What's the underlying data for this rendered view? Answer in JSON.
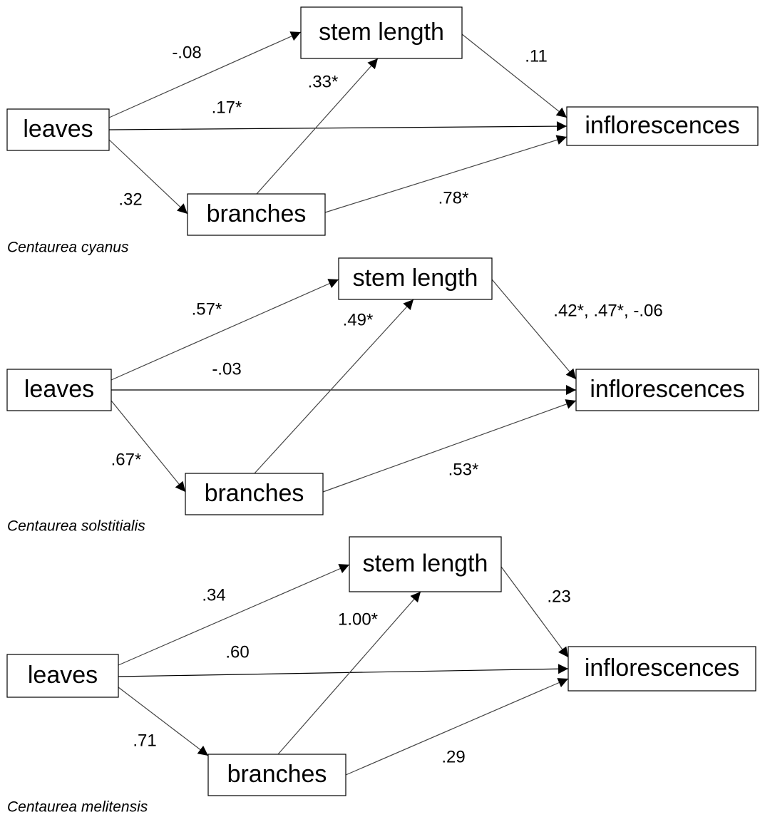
{
  "diagrams": [
    {
      "caption": "Centaurea cyanus",
      "nodes": [
        "leaves",
        "stem length",
        "branches",
        "inflorescences"
      ],
      "edges": [
        "-.08",
        ".17*",
        ".32",
        ".33*",
        ".11",
        ".78*"
      ]
    },
    {
      "caption": "Centaurea solstitialis",
      "nodes": [
        "leaves",
        "stem length",
        "branches",
        "inflorescences"
      ],
      "edges": [
        ".57*",
        "-.03",
        ".67*",
        ".49*",
        ".42*, .47*, -.06",
        ".53*"
      ]
    },
    {
      "caption": "Centaurea melitensis",
      "nodes": [
        "leaves",
        "stem length",
        "branches",
        "inflorescences"
      ],
      "edges": [
        ".34",
        ".60",
        ".71",
        "1.00*",
        ".23",
        ".29"
      ]
    }
  ]
}
